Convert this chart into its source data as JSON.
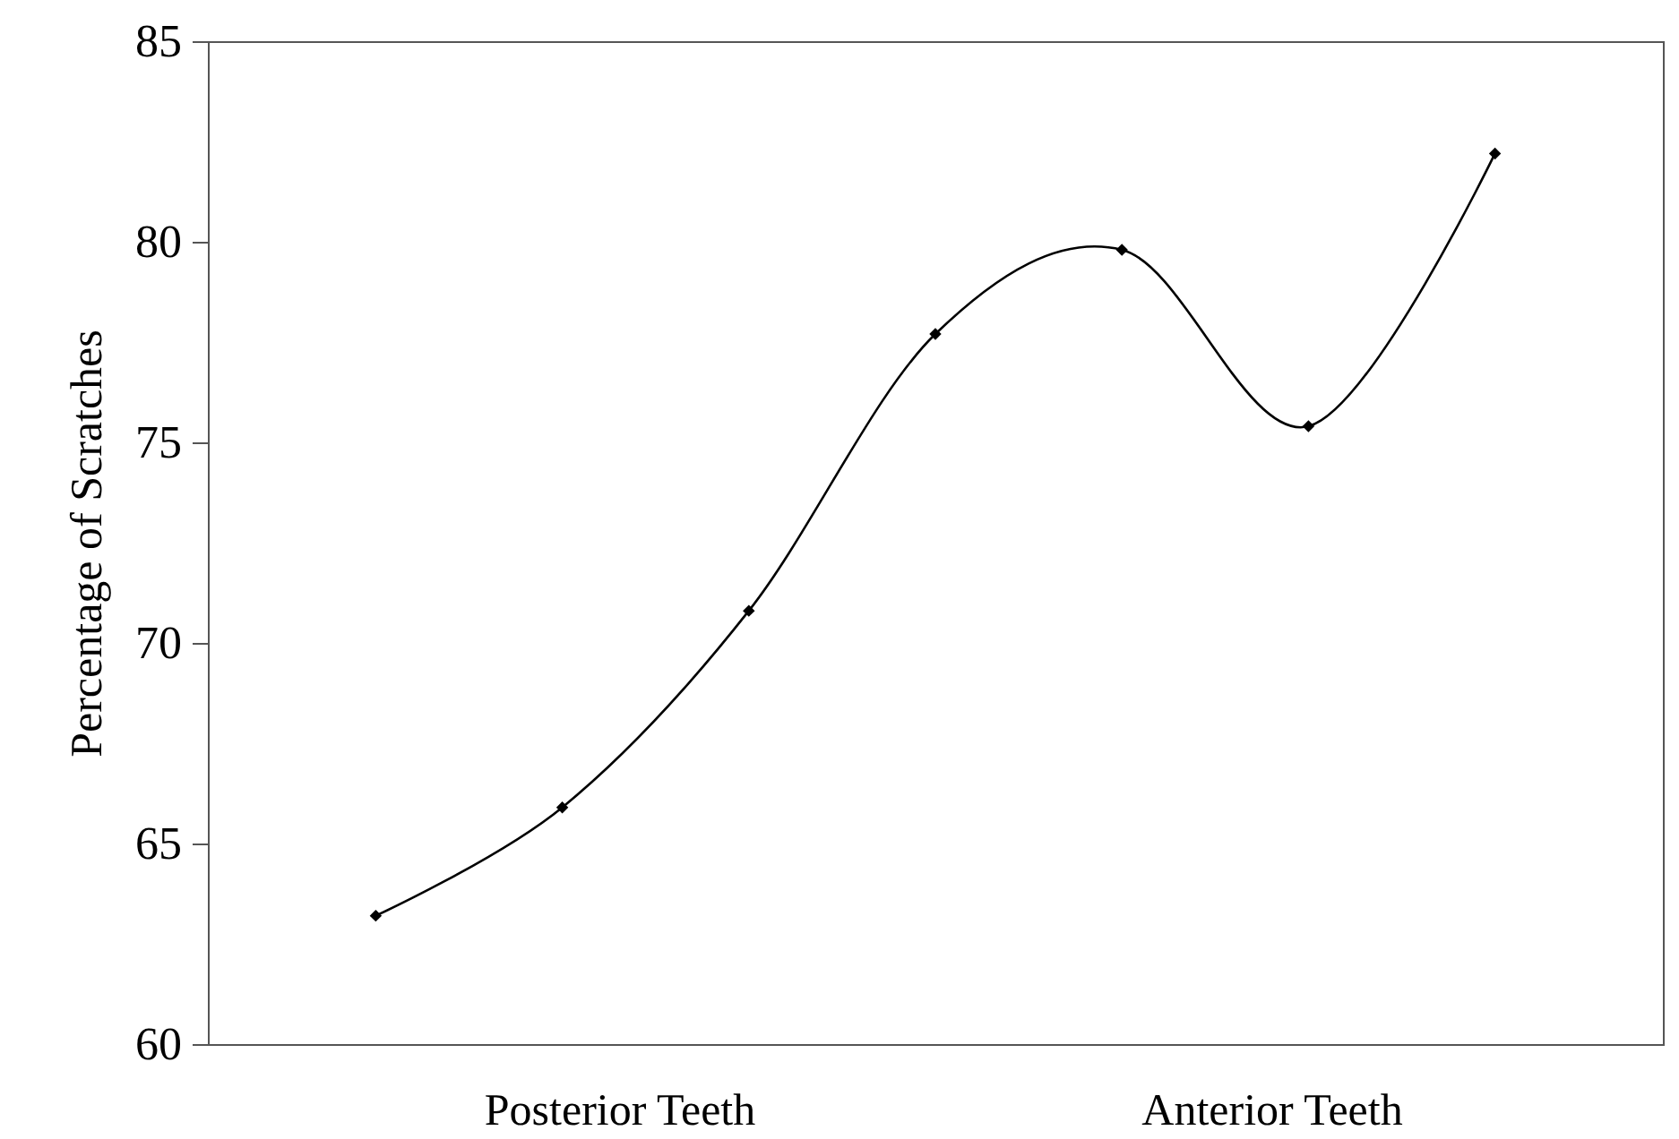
{
  "chart_data": {
    "type": "line",
    "ylabel": "Percentage of Scratches",
    "categories": [
      null,
      null,
      null,
      null,
      null,
      null,
      null
    ],
    "annotations": [
      "Posterior Teeth",
      "Anterior Teeth"
    ],
    "series": [
      {
        "color": "#000000",
        "values": [
          63.2,
          65.9,
          70.8,
          77.7,
          79.8,
          75.4,
          82.2
        ]
      }
    ],
    "ylim": [
      60,
      85
    ],
    "yticks": [
      60,
      65,
      70,
      75,
      80,
      85
    ],
    "marker": "diamond",
    "line_style": "solid"
  }
}
